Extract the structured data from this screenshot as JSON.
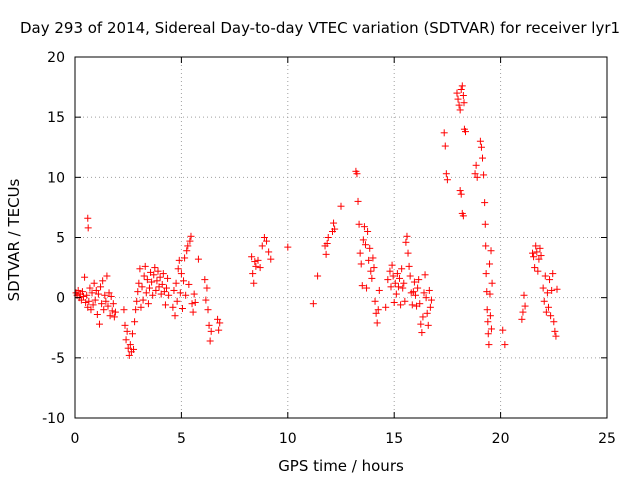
{
  "chart_data": {
    "type": "scatter",
    "title": "Day 293 of 2014, Sidereal Day-to-day VTEC variation (SDTVAR) for receiver lyr1",
    "xlabel": "GPS time / hours",
    "ylabel": "SDTVAR / TECUs",
    "xlim": [
      0,
      25
    ],
    "ylim": [
      -10,
      20
    ],
    "xticks": [
      0,
      5,
      10,
      15,
      20,
      25
    ],
    "yticks": [
      -10,
      -5,
      0,
      5,
      10,
      15,
      20
    ],
    "grid": true,
    "marker": "+",
    "series": [
      {
        "name": "SDTVAR",
        "color": "#ff0000",
        "points": [
          [
            0.05,
            0.4
          ],
          [
            0.1,
            0.2
          ],
          [
            0.15,
            0.6
          ],
          [
            0.2,
            0.0
          ],
          [
            0.25,
            0.3
          ],
          [
            0.3,
            -0.2
          ],
          [
            0.35,
            0.5
          ],
          [
            0.4,
            0.1
          ],
          [
            0.45,
            1.7
          ],
          [
            0.5,
            -0.4
          ],
          [
            0.55,
            0.2
          ],
          [
            0.6,
            -0.8
          ],
          [
            0.6,
            6.6
          ],
          [
            0.62,
            5.8
          ],
          [
            0.65,
            -0.3
          ],
          [
            0.7,
            0.8
          ],
          [
            0.75,
            -1.0
          ],
          [
            0.8,
            0.4
          ],
          [
            0.85,
            -0.6
          ],
          [
            0.9,
            1.2
          ],
          [
            0.95,
            -0.2
          ],
          [
            1.0,
            0.6
          ],
          [
            1.05,
            -1.4
          ],
          [
            1.1,
            0.3
          ],
          [
            1.15,
            -2.2
          ],
          [
            1.2,
            0.9
          ],
          [
            1.25,
            -0.5
          ],
          [
            1.3,
            1.4
          ],
          [
            1.35,
            -1.0
          ],
          [
            1.4,
            0.2
          ],
          [
            1.45,
            -0.3
          ],
          [
            1.5,
            1.8
          ],
          [
            1.55,
            -0.7
          ],
          [
            1.6,
            0.4
          ],
          [
            1.65,
            -1.5
          ],
          [
            1.7,
            0.1
          ],
          [
            1.75,
            -1.1
          ],
          [
            1.8,
            -0.5
          ],
          [
            1.85,
            -1.6
          ],
          [
            1.9,
            -1.2
          ],
          [
            2.3,
            -1.0
          ],
          [
            2.35,
            -2.3
          ],
          [
            2.4,
            -3.5
          ],
          [
            2.45,
            -2.8
          ],
          [
            2.5,
            -4.2
          ],
          [
            2.55,
            -4.8
          ],
          [
            2.6,
            -3.9
          ],
          [
            2.65,
            -4.5
          ],
          [
            2.7,
            -3.0
          ],
          [
            2.75,
            -4.3
          ],
          [
            2.8,
            -2.0
          ],
          [
            2.85,
            -1.0
          ],
          [
            2.9,
            -0.3
          ],
          [
            2.95,
            0.5
          ],
          [
            3.0,
            1.2
          ],
          [
            3.05,
            2.4
          ],
          [
            3.1,
            -0.8
          ],
          [
            3.15,
            0.9
          ],
          [
            3.2,
            -0.2
          ],
          [
            3.25,
            1.8
          ],
          [
            3.3,
            2.6
          ],
          [
            3.35,
            0.4
          ],
          [
            3.4,
            1.5
          ],
          [
            3.45,
            -0.5
          ],
          [
            3.5,
            0.8
          ],
          [
            3.55,
            2.1
          ],
          [
            3.6,
            1.3
          ],
          [
            3.65,
            0.2
          ],
          [
            3.7,
            1.9
          ],
          [
            3.75,
            2.5
          ],
          [
            3.8,
            0.6
          ],
          [
            3.85,
            1.4
          ],
          [
            3.9,
            2.2
          ],
          [
            3.95,
            0.9
          ],
          [
            4.0,
            1.7
          ],
          [
            4.05,
            0.3
          ],
          [
            4.1,
            1.1
          ],
          [
            4.15,
            2.0
          ],
          [
            4.2,
            0.5
          ],
          [
            4.25,
            -0.6
          ],
          [
            4.3,
            0.8
          ],
          [
            4.35,
            1.6
          ],
          [
            4.4,
            0.2
          ],
          [
            4.6,
            -0.8
          ],
          [
            4.65,
            0.6
          ],
          [
            4.7,
            -1.5
          ],
          [
            4.75,
            1.2
          ],
          [
            4.8,
            -0.3
          ],
          [
            4.85,
            2.4
          ],
          [
            4.9,
            3.1
          ],
          [
            4.95,
            0.4
          ],
          [
            5.0,
            2.0
          ],
          [
            5.05,
            -0.9
          ],
          [
            5.1,
            1.4
          ],
          [
            5.15,
            3.3
          ],
          [
            5.2,
            0.2
          ],
          [
            5.25,
            3.9
          ],
          [
            5.3,
            4.3
          ],
          [
            5.35,
            1.1
          ],
          [
            5.4,
            4.7
          ],
          [
            5.45,
            5.1
          ],
          [
            5.5,
            -0.5
          ],
          [
            5.55,
            -1.2
          ],
          [
            5.6,
            0.3
          ],
          [
            5.65,
            -0.4
          ],
          [
            5.8,
            3.2
          ],
          [
            6.1,
            1.5
          ],
          [
            6.15,
            -0.2
          ],
          [
            6.2,
            0.8
          ],
          [
            6.25,
            -1.0
          ],
          [
            6.3,
            -2.3
          ],
          [
            6.35,
            -3.6
          ],
          [
            6.4,
            -2.8
          ],
          [
            6.7,
            -1.8
          ],
          [
            6.75,
            -2.7
          ],
          [
            6.8,
            -2.1
          ],
          [
            8.3,
            3.4
          ],
          [
            8.35,
            2.0
          ],
          [
            8.4,
            1.2
          ],
          [
            8.45,
            3.0
          ],
          [
            8.5,
            2.6
          ],
          [
            8.6,
            3.1
          ],
          [
            8.7,
            2.5
          ],
          [
            8.8,
            4.3
          ],
          [
            8.9,
            5.0
          ],
          [
            9.0,
            4.7
          ],
          [
            9.1,
            3.8
          ],
          [
            9.2,
            3.2
          ],
          [
            10.0,
            4.2
          ],
          [
            11.2,
            -0.5
          ],
          [
            11.4,
            1.8
          ],
          [
            11.75,
            4.3
          ],
          [
            11.8,
            3.6
          ],
          [
            11.85,
            4.5
          ],
          [
            11.9,
            5.0
          ],
          [
            12.1,
            5.5
          ],
          [
            12.15,
            6.2
          ],
          [
            12.2,
            5.7
          ],
          [
            12.5,
            7.6
          ],
          [
            13.2,
            10.5
          ],
          [
            13.25,
            10.3
          ],
          [
            13.3,
            8.0
          ],
          [
            13.35,
            6.1
          ],
          [
            13.4,
            3.7
          ],
          [
            13.45,
            2.8
          ],
          [
            13.5,
            1.0
          ],
          [
            13.55,
            4.8
          ],
          [
            13.6,
            5.9
          ],
          [
            13.65,
            4.4
          ],
          [
            13.7,
            0.8
          ],
          [
            13.75,
            5.5
          ],
          [
            13.8,
            3.1
          ],
          [
            13.85,
            4.1
          ],
          [
            13.9,
            2.2
          ],
          [
            13.95,
            1.6
          ],
          [
            14.0,
            3.3
          ],
          [
            14.05,
            2.5
          ],
          [
            14.1,
            -0.3
          ],
          [
            14.15,
            -1.3
          ],
          [
            14.2,
            -2.1
          ],
          [
            14.25,
            -1.0
          ],
          [
            14.3,
            0.6
          ],
          [
            14.6,
            -0.8
          ],
          [
            14.7,
            1.5
          ],
          [
            14.8,
            2.2
          ],
          [
            14.85,
            0.9
          ],
          [
            14.9,
            2.7
          ],
          [
            14.95,
            1.8
          ],
          [
            15.0,
            -0.4
          ],
          [
            15.05,
            1.2
          ],
          [
            15.1,
            0.3
          ],
          [
            15.15,
            2.0
          ],
          [
            15.2,
            0.9
          ],
          [
            15.25,
            1.6
          ],
          [
            15.3,
            -0.6
          ],
          [
            15.35,
            2.4
          ],
          [
            15.4,
            0.8
          ],
          [
            15.45,
            1.2
          ],
          [
            15.5,
            -0.3
          ],
          [
            15.55,
            4.6
          ],
          [
            15.6,
            5.1
          ],
          [
            15.65,
            3.7
          ],
          [
            15.7,
            2.6
          ],
          [
            15.75,
            1.8
          ],
          [
            15.8,
            0.4
          ],
          [
            15.85,
            -0.6
          ],
          [
            15.9,
            0.5
          ],
          [
            15.95,
            1.3
          ],
          [
            16.0,
            0.2
          ],
          [
            16.05,
            -0.7
          ],
          [
            16.1,
            0.8
          ],
          [
            16.15,
            1.5
          ],
          [
            16.2,
            -0.5
          ],
          [
            16.25,
            -2.2
          ],
          [
            16.3,
            -2.9
          ],
          [
            16.35,
            -1.6
          ],
          [
            16.4,
            0.4
          ],
          [
            16.45,
            1.9
          ],
          [
            16.5,
            0.0
          ],
          [
            16.55,
            -1.3
          ],
          [
            16.6,
            -2.3
          ],
          [
            16.65,
            0.6
          ],
          [
            16.7,
            -0.8
          ],
          [
            16.75,
            -0.2
          ],
          [
            17.35,
            13.7
          ],
          [
            17.4,
            12.6
          ],
          [
            17.45,
            10.3
          ],
          [
            17.5,
            9.8
          ],
          [
            17.95,
            17.0
          ],
          [
            18.0,
            16.5
          ],
          [
            18.05,
            16.0
          ],
          [
            18.1,
            15.6
          ],
          [
            18.15,
            17.3
          ],
          [
            18.2,
            17.6
          ],
          [
            18.25,
            16.8
          ],
          [
            18.28,
            16.2
          ],
          [
            18.3,
            14.0
          ],
          [
            18.35,
            13.8
          ],
          [
            18.1,
            8.9
          ],
          [
            18.15,
            8.6
          ],
          [
            18.2,
            7.0
          ],
          [
            18.25,
            6.8
          ],
          [
            18.8,
            10.3
          ],
          [
            18.85,
            11.0
          ],
          [
            18.9,
            10.0
          ],
          [
            19.05,
            13.0
          ],
          [
            19.1,
            12.5
          ],
          [
            19.15,
            11.6
          ],
          [
            19.2,
            10.2
          ],
          [
            19.25,
            7.9
          ],
          [
            19.28,
            6.1
          ],
          [
            19.3,
            4.3
          ],
          [
            19.32,
            2.0
          ],
          [
            19.35,
            0.5
          ],
          [
            19.37,
            -1.0
          ],
          [
            19.4,
            -2.0
          ],
          [
            19.42,
            -3.0
          ],
          [
            19.45,
            -3.9
          ],
          [
            19.48,
            2.8
          ],
          [
            19.5,
            0.3
          ],
          [
            19.52,
            -1.5
          ],
          [
            19.55,
            3.9
          ],
          [
            19.57,
            -2.6
          ],
          [
            19.6,
            1.2
          ],
          [
            20.1,
            -2.7
          ],
          [
            20.2,
            -3.9
          ],
          [
            21.0,
            -1.8
          ],
          [
            21.05,
            -1.2
          ],
          [
            21.1,
            0.2
          ],
          [
            21.15,
            -0.7
          ],
          [
            21.5,
            3.7
          ],
          [
            21.55,
            3.4
          ],
          [
            21.6,
            2.5
          ],
          [
            21.65,
            4.3
          ],
          [
            21.7,
            3.8
          ],
          [
            21.75,
            2.2
          ],
          [
            21.8,
            3.2
          ],
          [
            21.85,
            4.1
          ],
          [
            21.9,
            3.5
          ],
          [
            22.0,
            0.8
          ],
          [
            22.05,
            -0.3
          ],
          [
            22.1,
            1.8
          ],
          [
            22.15,
            -1.2
          ],
          [
            22.2,
            0.4
          ],
          [
            22.25,
            -0.8
          ],
          [
            22.3,
            1.5
          ],
          [
            22.35,
            -1.5
          ],
          [
            22.4,
            0.6
          ],
          [
            22.45,
            2.0
          ],
          [
            22.5,
            -2.0
          ],
          [
            22.55,
            -2.8
          ],
          [
            22.6,
            -3.2
          ],
          [
            22.65,
            0.7
          ]
        ]
      }
    ]
  }
}
